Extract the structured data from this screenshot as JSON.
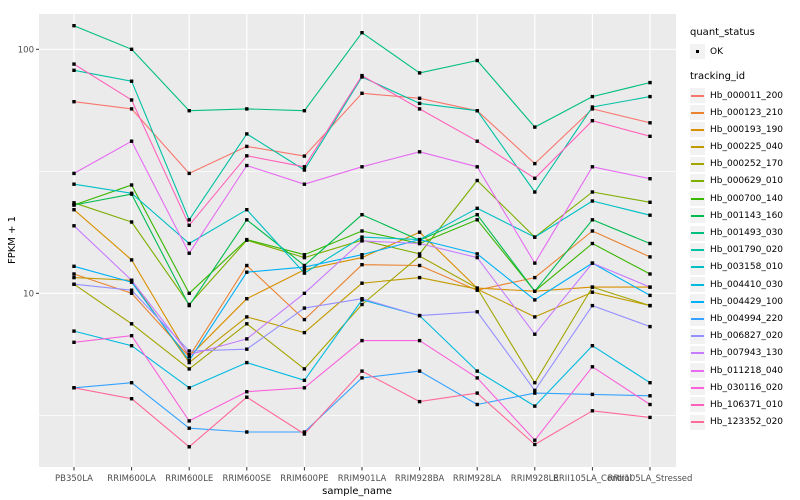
{
  "figure": {
    "background": "#FFFFFF",
    "panel_background": "#EBEBEB",
    "gridline_color": "#FFFFFF",
    "axis_text_color": "#4D4D4D",
    "tick_mark_color": "#333333",
    "point_color": "#000000",
    "legend_key_background": "#F2F2F2"
  },
  "chart_data": {
    "type": "line",
    "title": "",
    "xlabel": "sample_name",
    "ylabel": "FPKM + 1",
    "y_scale": "log10",
    "ylim": [
      1.9,
      140
    ],
    "grid": true,
    "legend_position": "right",
    "y_ticks": [
      {
        "value": 10,
        "label": "10"
      },
      {
        "value": 100,
        "label": "100"
      }
    ],
    "y_minor_ticks": [
      3.1623,
      31.623
    ],
    "categories": [
      "PB350LA",
      "RRIM600LA",
      "RRIM600LE",
      "RRIM600SE",
      "RRIM600PE",
      "RRIM901LA",
      "RRIM928BA",
      "RRIM928LA",
      "RRIM928LE",
      "RRII105LA_Control",
      "RRII105LA_Stressed"
    ],
    "legend": {
      "quant_status_title": "quant_status",
      "ok_label": "OK",
      "tracking_id_title": "tracking_id"
    },
    "series": [
      {
        "tracking_id": "Hb_000011_200",
        "color": "#F8766D",
        "quant_status": "OK",
        "values": [
          61,
          57,
          31,
          40,
          36.5,
          66,
          63,
          56,
          34,
          57,
          50
        ]
      },
      {
        "tracking_id": "Hb_000123_210",
        "color": "#EA8331",
        "quant_status": "OK",
        "values": [
          12,
          10,
          5.5,
          13,
          7.8,
          13.1,
          13,
          10.3,
          11.6,
          18,
          14.1
        ]
      },
      {
        "tracking_id": "Hb_000193_190",
        "color": "#D89000",
        "quant_status": "OK",
        "values": [
          22,
          13.7,
          5.5,
          9.5,
          12.5,
          14,
          17.8,
          10.5,
          10.2,
          10.6,
          10.6
        ]
      },
      {
        "tracking_id": "Hb_000225_040",
        "color": "#C09B00",
        "quant_status": "OK",
        "values": [
          11.6,
          11.3,
          5.2,
          8,
          6.9,
          11,
          11.6,
          10.4,
          8.0,
          10.1,
          8.9
        ]
      },
      {
        "tracking_id": "Hb_000252_170",
        "color": "#A3A500",
        "quant_status": "OK",
        "values": [
          10.9,
          7.5,
          4.9,
          7.5,
          4.9,
          9,
          14.2,
          10.5,
          4.3,
          10.6,
          8.9
        ]
      },
      {
        "tracking_id": "Hb_000629_010",
        "color": "#7CAE00",
        "quant_status": "OK",
        "values": [
          23.5,
          19.6,
          9.0,
          16.5,
          14.0,
          16.5,
          14.5,
          29,
          17,
          26,
          23.6
        ]
      },
      {
        "tracking_id": "Hb_000700_140",
        "color": "#39B600",
        "quant_status": "OK",
        "values": [
          23,
          27.8,
          10,
          16.6,
          14.4,
          18,
          16,
          20,
          10.2,
          16,
          12
        ]
      },
      {
        "tracking_id": "Hb_001143_160",
        "color": "#00BB4E",
        "quant_status": "OK",
        "values": [
          23,
          25.5,
          8.9,
          20,
          13,
          21,
          16.5,
          21,
          10.2,
          20,
          16
        ]
      },
      {
        "tracking_id": "Hb_001493_030",
        "color": "#00BF7D",
        "quant_status": "OK",
        "values": [
          125,
          100,
          56,
          57,
          56,
          117,
          80,
          90,
          48,
          64,
          73
        ]
      },
      {
        "tracking_id": "Hb_001790_020",
        "color": "#00C1A3",
        "quant_status": "OK",
        "values": [
          82,
          74,
          20,
          45,
          32,
          77,
          60,
          56,
          26,
          58,
          64
        ]
      },
      {
        "tracking_id": "Hb_003158_010",
        "color": "#00BFC4",
        "quant_status": "OK",
        "values": [
          28,
          25.7,
          16,
          22,
          12.1,
          17,
          16.6,
          22.3,
          17,
          23.9,
          20.9
        ]
      },
      {
        "tracking_id": "Hb_004410_030",
        "color": "#00BAE0",
        "quant_status": "OK",
        "values": [
          7.0,
          6.1,
          4.1,
          5.2,
          4.4,
          9.4,
          8.1,
          4.8,
          3.45,
          6.1,
          4.3
        ]
      },
      {
        "tracking_id": "Hb_004429_100",
        "color": "#00B0F6",
        "quant_status": "OK",
        "values": [
          12.9,
          11.1,
          5.3,
          12.2,
          12.8,
          14.4,
          16.6,
          14.5,
          9.4,
          13.3,
          9.8
        ]
      },
      {
        "tracking_id": "Hb_004994_220",
        "color": "#35A2FF",
        "quant_status": "OK",
        "values": [
          4.1,
          4.3,
          2.8,
          2.7,
          2.7,
          4.5,
          4.8,
          3.5,
          3.9,
          3.85,
          3.8
        ]
      },
      {
        "tracking_id": "Hb_006827_020",
        "color": "#9590FF",
        "quant_status": "OK",
        "values": [
          10.9,
          10.3,
          5.8,
          5.9,
          8.7,
          9.5,
          8.1,
          8.4,
          4.0,
          8.9,
          7.3
        ]
      },
      {
        "tracking_id": "Hb_007943_130",
        "color": "#C77CFF",
        "quant_status": "OK",
        "values": [
          18.9,
          11.3,
          5.6,
          6.5,
          10,
          16.4,
          16,
          14,
          6.8,
          13.3,
          10.6
        ]
      },
      {
        "tracking_id": "Hb_011218_040",
        "color": "#E76BF3",
        "quant_status": "OK",
        "values": [
          31,
          42,
          14.6,
          33.4,
          28,
          33,
          38,
          33,
          13.3,
          33,
          29.5
        ]
      },
      {
        "tracking_id": "Hb_030116_020",
        "color": "#FA62DB",
        "quant_status": "OK",
        "values": [
          6.3,
          6.7,
          3.0,
          3.95,
          4.1,
          6.4,
          6.4,
          4.5,
          2.5,
          5.0,
          3.5
        ]
      },
      {
        "tracking_id": "Hb_106371_010",
        "color": "#FF62BC",
        "quant_status": "OK",
        "values": [
          87,
          62,
          19,
          36.6,
          33,
          78,
          57,
          42,
          29.6,
          51,
          44
        ]
      },
      {
        "tracking_id": "Hb_123352_020",
        "color": "#FF6A98",
        "quant_status": "OK",
        "values": [
          4.1,
          3.7,
          2.35,
          3.75,
          2.65,
          4.8,
          3.6,
          3.9,
          2.4,
          3.3,
          3.1
        ]
      }
    ]
  }
}
